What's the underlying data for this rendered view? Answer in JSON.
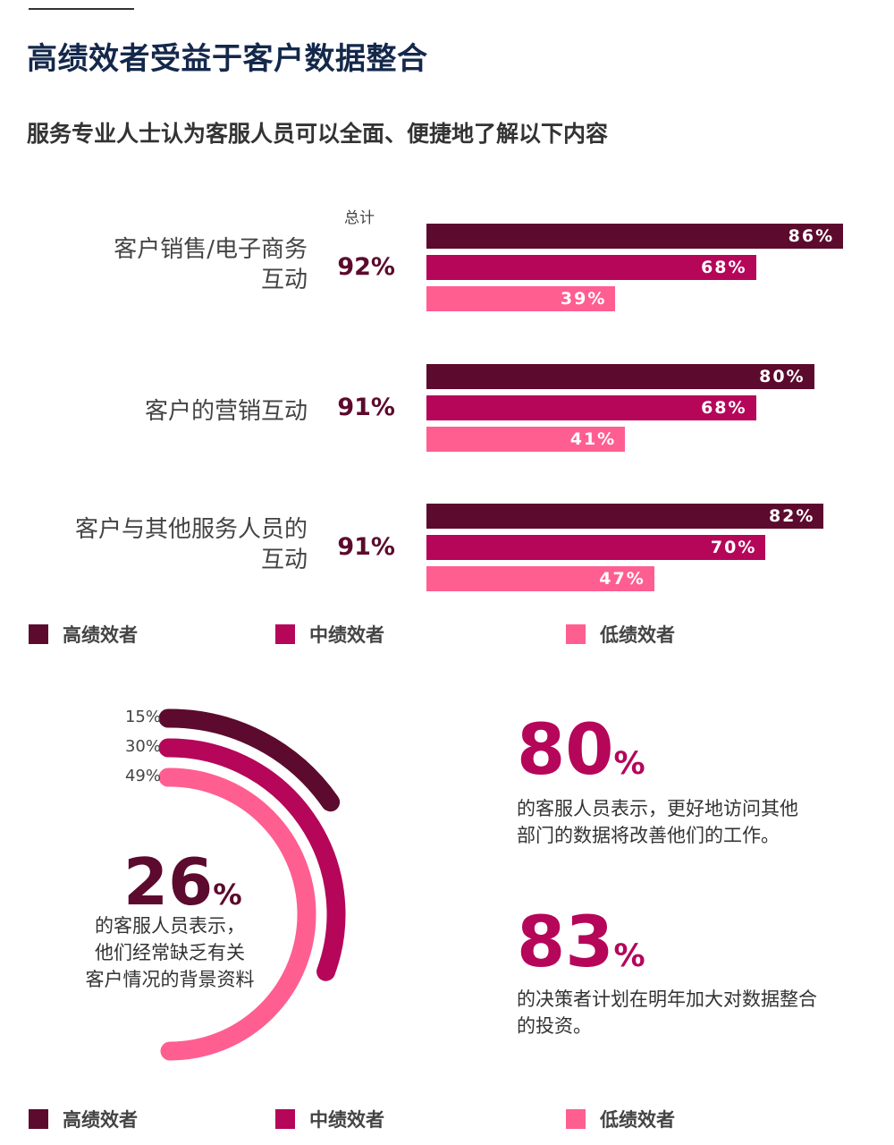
{
  "title": "高绩效者受益于客户数据整合",
  "subtitle": "服务专业人士认为客服人员可以全面、便捷地了解以下内容",
  "colors": {
    "high": "#5c0a2d",
    "mid": "#b5065a",
    "low": "#ff5e91",
    "title": "#14284b"
  },
  "chart_data": [
    {
      "type": "bar",
      "orientation": "horizontal",
      "total_header": "总计",
      "categories": [
        {
          "label_lines": [
            "客户销售/电子商务",
            "互动"
          ],
          "total": "92%"
        },
        {
          "label_lines": [
            "客户的营销互动"
          ],
          "total": "91%"
        },
        {
          "label_lines": [
            "客户与其他服务人员的",
            "互动"
          ],
          "total": "91%"
        }
      ],
      "series": [
        {
          "name": "高绩效者",
          "values": [
            86,
            80,
            82
          ],
          "labels": [
            "86%",
            "80%",
            "82%"
          ]
        },
        {
          "name": "中绩效者",
          "values": [
            68,
            68,
            70
          ],
          "labels": [
            "68%",
            "68%",
            "70%"
          ]
        },
        {
          "name": "低绩效者",
          "values": [
            39,
            41,
            47
          ],
          "labels": [
            "39%",
            "41%",
            "47%"
          ]
        }
      ],
      "xlim": [
        0,
        100
      ],
      "legend": [
        "高绩效者",
        "中绩效者",
        "低绩效者"
      ],
      "legend_position": "bottom"
    },
    {
      "type": "radial-bar",
      "series": [
        {
          "name": "高绩效者",
          "value": 15,
          "label": "15%"
        },
        {
          "name": "中绩效者",
          "value": 30,
          "label": "30%"
        },
        {
          "name": "低绩效者",
          "value": 49,
          "label": "49%"
        }
      ],
      "center_value": "26",
      "center_unit": "%",
      "center_text_lines": [
        "的客服人员表示，",
        "他们经常缺乏有关",
        "客户情况的背景资料"
      ],
      "legend": [
        "高绩效者",
        "中绩效者",
        "低绩效者"
      ],
      "legend_position": "bottom"
    }
  ],
  "stats": [
    {
      "value": "80",
      "unit": "%",
      "text_lines": [
        "的客服人员表示，更好地访问其他",
        "部门的数据将改善他们的工作。"
      ]
    },
    {
      "value": "83",
      "unit": "%",
      "text_lines": [
        "的决策者计划在明年加大对数据整合",
        "的投资。"
      ]
    }
  ]
}
